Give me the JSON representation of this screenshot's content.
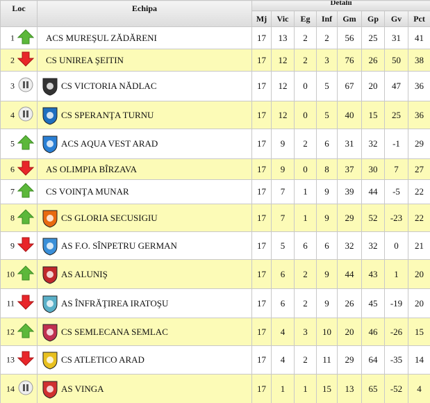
{
  "header": {
    "loc": "Loc",
    "team": "Echipa",
    "details": "Detalii",
    "columns": [
      "Mj",
      "Vic",
      "Eg",
      "Inf",
      "Gm",
      "Gp",
      "Gv",
      "Pct"
    ]
  },
  "rows": [
    [
      1,
      "ACS MUREŞUL ZĂDĂRENI",
      17,
      13,
      2,
      2,
      56,
      25,
      31,
      41
    ],
    [
      2,
      "CS UNIREA ŞEITIN",
      17,
      12,
      2,
      3,
      76,
      26,
      50,
      38
    ],
    [
      3,
      "CS VICTORIA NĂDLAC",
      17,
      12,
      0,
      5,
      67,
      20,
      47,
      36
    ],
    [
      4,
      "CS SPERANŢA TURNU",
      17,
      12,
      0,
      5,
      40,
      15,
      25,
      36
    ],
    [
      5,
      "ACS AQUA VEST ARAD",
      17,
      9,
      2,
      6,
      31,
      32,
      -1,
      29
    ],
    [
      6,
      "AS OLIMPIA BÎRZAVA",
      17,
      9,
      0,
      8,
      37,
      30,
      7,
      27
    ],
    [
      7,
      "CS VOINŢA MUNAR",
      17,
      7,
      1,
      9,
      39,
      44,
      -5,
      22
    ],
    [
      8,
      "CS GLORIA SECUSIGIU",
      17,
      7,
      1,
      9,
      29,
      52,
      -23,
      22
    ],
    [
      9,
      "AS F.O. SÎNPETRU GERMAN",
      17,
      5,
      6,
      6,
      32,
      32,
      0,
      21
    ],
    [
      10,
      "AS ALUNIŞ",
      17,
      6,
      2,
      9,
      44,
      43,
      1,
      20
    ],
    [
      11,
      "AS ÎNFRĂŢIREA IRATOŞU",
      17,
      6,
      2,
      9,
      26,
      45,
      -19,
      20
    ],
    [
      12,
      "CS SEMLECANA SEMLAC",
      17,
      4,
      3,
      10,
      20,
      46,
      -26,
      15
    ],
    [
      13,
      "CS ATLETICO ARAD",
      17,
      4,
      2,
      11,
      29,
      64,
      -35,
      14
    ],
    [
      14,
      "AS VINGA",
      17,
      1,
      1,
      15,
      13,
      65,
      -52,
      4
    ]
  ]
}
